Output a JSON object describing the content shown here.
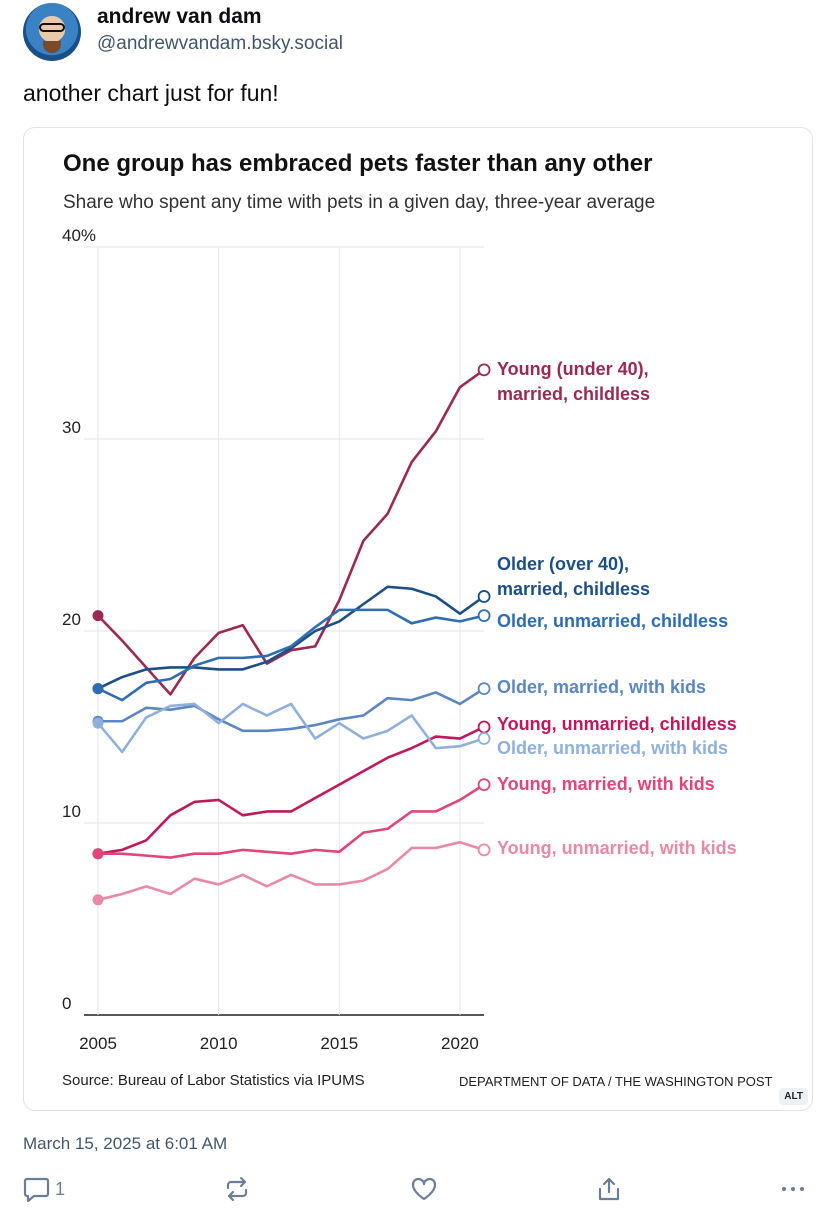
{
  "author": {
    "name": "andrew van dam",
    "handle": "@andrewvandam.bsky.social"
  },
  "post": {
    "text": "another chart just for fun!",
    "date": "March 15, 2025 at 6:01 AM",
    "alt_badge": "ALT"
  },
  "actions": {
    "reply_count": "1"
  },
  "chart_data": {
    "type": "line",
    "title": "One group has embraced pets faster than any other",
    "subtitle": "Share who spent any time with pets in a given day, three-year average",
    "source": "Source: Bureau of Labor Statistics via IPUMS",
    "credit": "DEPARTMENT OF DATA / THE WASHINGTON POST",
    "x": [
      2005,
      2006,
      2007,
      2008,
      2009,
      2010,
      2011,
      2012,
      2013,
      2014,
      2015,
      2016,
      2017,
      2018,
      2019,
      2020,
      2021
    ],
    "xticks": [
      "2005",
      "2010",
      "2015",
      "2020"
    ],
    "xtick_values": [
      2005,
      2010,
      2015,
      2020
    ],
    "yticks": [
      "0",
      "10",
      "20",
      "30",
      "40%"
    ],
    "ytick_values": [
      0,
      10,
      20,
      30,
      40
    ],
    "ylim": [
      0,
      40
    ],
    "grid": true,
    "series": [
      {
        "name": "Young (under 40), married, childless",
        "label_lines": [
          "Young (under 40),",
          "married, childless"
        ],
        "color": "#9b2a52",
        "values": [
          20.8,
          19.5,
          18.1,
          16.7,
          18.6,
          19.9,
          20.3,
          18.3,
          19.0,
          19.2,
          21.6,
          24.7,
          26.1,
          28.8,
          30.4,
          32.7,
          33.6
        ]
      },
      {
        "name": "Older (over 40), married, childless",
        "label_lines": [
          "Older (over 40),",
          "married, childless"
        ],
        "color": "#1d4f86",
        "values": [
          17.0,
          17.6,
          18.0,
          18.1,
          18.1,
          18.0,
          18.0,
          18.4,
          19.1,
          20.0,
          20.5,
          21.4,
          22.3,
          22.2,
          21.8,
          20.9,
          21.8
        ]
      },
      {
        "name": "Older, unmarried, childless",
        "label_lines": [
          "Older, unmarried, childless"
        ],
        "color": "#2e6db4",
        "values": [
          17.0,
          16.4,
          17.3,
          17.5,
          18.2,
          18.6,
          18.6,
          18.7,
          19.2,
          20.2,
          21.1,
          21.1,
          21.1,
          20.4,
          20.7,
          20.5,
          20.8
        ]
      },
      {
        "name": "Older, married, with kids",
        "label_lines": [
          "Older, married, with kids"
        ],
        "color": "#5b86c4",
        "values": [
          15.3,
          15.3,
          16.0,
          15.9,
          16.1,
          15.4,
          14.8,
          14.8,
          14.9,
          15.1,
          15.4,
          15.6,
          16.5,
          16.4,
          16.8,
          16.2,
          17.0
        ]
      },
      {
        "name": "Young, unmarried, childless",
        "label_lines": [
          "Young, unmarried, childless"
        ],
        "color": "#c2185b",
        "values": [
          8.4,
          8.6,
          9.1,
          10.4,
          11.1,
          11.2,
          10.4,
          10.6,
          10.6,
          11.3,
          12.0,
          12.7,
          13.4,
          13.9,
          14.5,
          14.4,
          15.0
        ]
      },
      {
        "name": "Older, unmarried, with kids",
        "label_lines": [
          "Older, unmarried, with kids"
        ],
        "color": "#8fb0dc",
        "values": [
          15.2,
          13.7,
          15.5,
          16.1,
          16.2,
          15.2,
          16.2,
          15.6,
          16.2,
          14.4,
          15.2,
          14.4,
          14.8,
          15.6,
          13.9,
          14.0,
          14.4
        ]
      },
      {
        "name": "Young, married, with kids",
        "label_lines": [
          "Young, married, with kids"
        ],
        "color": "#e0457b",
        "values": [
          8.4,
          8.4,
          8.3,
          8.2,
          8.4,
          8.4,
          8.6,
          8.5,
          8.4,
          8.6,
          8.5,
          9.5,
          9.7,
          10.6,
          10.6,
          11.2,
          12.0
        ]
      },
      {
        "name": "Young, unmarried, with kids",
        "label_lines": [
          "Young, unmarried, with kids"
        ],
        "color": "#e88aa6",
        "values": [
          6.0,
          6.3,
          6.7,
          6.3,
          7.1,
          6.8,
          7.3,
          6.7,
          7.3,
          6.8,
          6.8,
          7.0,
          7.6,
          8.7,
          8.7,
          9.0,
          8.6
        ]
      }
    ]
  }
}
